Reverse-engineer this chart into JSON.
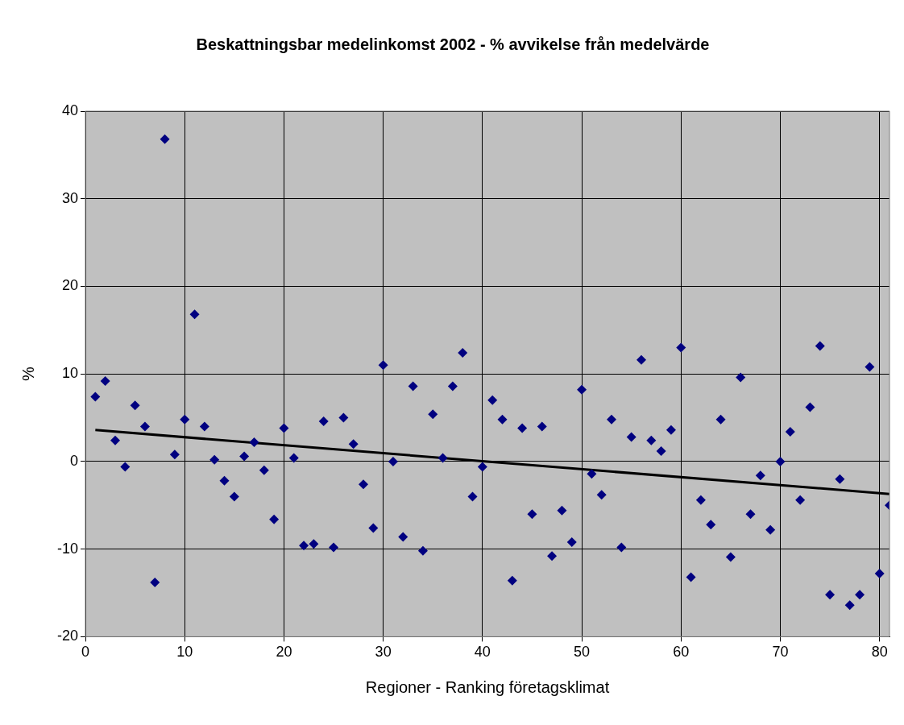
{
  "chart_data": {
    "type": "scatter",
    "title": "Beskattningsbar medelinkomst 2002 - % avvikelse från medelvärde",
    "xlabel": "Regioner - Ranking företagsklimat",
    "ylabel": "%",
    "x": [
      1,
      2,
      3,
      4,
      5,
      6,
      7,
      8,
      9,
      10,
      11,
      12,
      13,
      14,
      15,
      16,
      17,
      18,
      19,
      20,
      21,
      22,
      23,
      24,
      25,
      26,
      27,
      28,
      29,
      30,
      31,
      32,
      33,
      34,
      35,
      36,
      37,
      38,
      39,
      40,
      41,
      42,
      43,
      44,
      45,
      46,
      47,
      48,
      49,
      50,
      51,
      52,
      53,
      54,
      55,
      56,
      57,
      58,
      59,
      60,
      61,
      62,
      63,
      64,
      65,
      66,
      67,
      68,
      69,
      70,
      71,
      72,
      73,
      74,
      75,
      76,
      77,
      78,
      79,
      80,
      81
    ],
    "series": [
      {
        "color": "#000080",
        "marker": "diamond",
        "values": [
          7.4,
          9.2,
          2.4,
          -0.6,
          6.4,
          4.0,
          -13.8,
          36.8,
          0.8,
          4.8,
          16.8,
          4.0,
          0.2,
          -2.2,
          -4.0,
          0.6,
          2.2,
          -1.0,
          -6.6,
          3.8,
          0.4,
          -9.6,
          -9.4,
          4.6,
          -9.8,
          5.0,
          2.0,
          -2.6,
          -7.6,
          11.0,
          0.0,
          -8.6,
          8.6,
          -10.2,
          5.4,
          0.4,
          8.6,
          12.4,
          -4.0,
          -0.6,
          7.0,
          4.8,
          -13.6,
          3.8,
          -6.0,
          4.0,
          -10.8,
          -5.6,
          -9.2,
          8.2,
          -1.4,
          -3.8,
          4.8,
          -9.8,
          2.8,
          11.6,
          2.4,
          1.2,
          3.6,
          13.0,
          -13.2,
          -4.4,
          -7.2,
          4.8,
          -10.9,
          9.6,
          -6.0,
          -1.6,
          -7.8,
          0.0,
          3.4,
          -4.4,
          6.2,
          13.2,
          -15.2,
          -2.0,
          -16.4,
          -15.2,
          10.8,
          -12.8,
          -5.0
        ]
      },
      {
        "type": "line",
        "color": "#000000",
        "marker": "none",
        "line_style": "solid",
        "x": [
          1,
          81
        ],
        "values": [
          3.6,
          -3.7
        ]
      }
    ],
    "xlim": [
      0,
      81
    ],
    "xticks": [
      0,
      10,
      20,
      30,
      40,
      50,
      60,
      70,
      80
    ],
    "ylim": [
      -20,
      40
    ],
    "yticks": [
      -20,
      -10,
      0,
      10,
      20,
      30,
      40
    ],
    "grid": true
  }
}
